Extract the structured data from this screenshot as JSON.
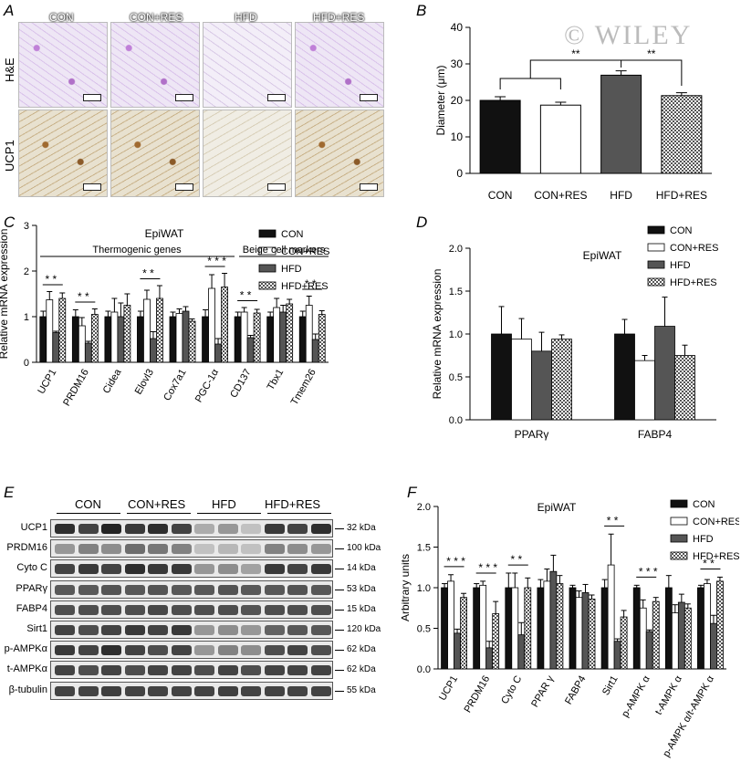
{
  "panels": {
    "A": {
      "label": "A",
      "columns": [
        "CON",
        "CON+RES",
        "HFD",
        "HFD+RES"
      ],
      "rows": [
        "H&E",
        "UCP1"
      ]
    },
    "B": {
      "label": "B"
    },
    "C": {
      "label": "C"
    },
    "D": {
      "label": "D"
    },
    "E": {
      "label": "E",
      "groups": [
        "CON",
        "CON+RES",
        "HFD",
        "HFD+RES"
      ],
      "proteins": [
        {
          "name": "UCP1",
          "kda": "32 kDa"
        },
        {
          "name": "PRDM16",
          "kda": "100 kDa"
        },
        {
          "name": "Cyto C",
          "kda": "14 kDa"
        },
        {
          "name": "PPARγ",
          "kda": "53 kDa"
        },
        {
          "name": "FABP4",
          "kda": "15 kDa"
        },
        {
          "name": "Sirt1",
          "kda": "120 kDa"
        },
        {
          "name": "p-AMPKα",
          "kda": "62 kDa"
        },
        {
          "name": "t-AMPKα",
          "kda": "62 kDa"
        },
        {
          "name": "β-tubulin",
          "kda": "55 kDa"
        }
      ]
    },
    "F": {
      "label": "F"
    }
  },
  "watermark": "© WILEY",
  "colors": {
    "CON": "#111111",
    "CON+RES": "#ffffff",
    "HFD": "#555555",
    "HFD+RES": "#bbbbbb"
  },
  "chart_data": [
    {
      "id": "B",
      "type": "bar",
      "ylabel": "Diameter (μm)",
      "ylim": [
        0,
        40
      ],
      "yticks": [
        0,
        10,
        20,
        30,
        40
      ],
      "categories": [
        "CON",
        "CON+RES",
        "HFD",
        "HFD+RES"
      ],
      "values": [
        20.0,
        18.7,
        26.9,
        21.3
      ],
      "errors": [
        1.0,
        0.8,
        1.2,
        0.8
      ],
      "significance": [
        "**",
        "**"
      ]
    },
    {
      "id": "C",
      "type": "bar",
      "title": "EpiWAT",
      "ylabel": "Relative mRNA expression",
      "ylim": [
        0,
        3
      ],
      "yticks": [
        0,
        1,
        2,
        3
      ],
      "group_labels": [
        "Thermogenic genes",
        "Beige cell markers"
      ],
      "categories": [
        "UCP1",
        "PRDM16",
        "Cidea",
        "Elovl3",
        "Cox7a1",
        "PGC-1α",
        "CD137",
        "Tbx1",
        "Tmem26"
      ],
      "series": [
        {
          "name": "CON",
          "values": [
            1.0,
            1.0,
            1.0,
            1.0,
            1.0,
            1.0,
            1.0,
            1.0,
            1.0
          ],
          "errors": [
            0.12,
            0.15,
            0.12,
            0.12,
            0.1,
            0.15,
            0.1,
            0.1,
            0.12
          ]
        },
        {
          "name": "CON+RES",
          "values": [
            1.37,
            0.8,
            1.1,
            1.38,
            1.07,
            1.62,
            1.1,
            1.2,
            1.25
          ],
          "errors": [
            0.18,
            0.18,
            0.3,
            0.2,
            0.1,
            0.3,
            0.1,
            0.2,
            0.2
          ]
        },
        {
          "name": "HFD",
          "values": [
            0.65,
            0.42,
            1.0,
            0.52,
            1.12,
            0.4,
            0.54,
            1.1,
            0.5
          ],
          "errors": [
            0.03,
            0.04,
            0.3,
            0.15,
            0.1,
            0.12,
            0.05,
            0.15,
            0.12
          ]
        },
        {
          "name": "HFD+RES",
          "values": [
            1.4,
            1.05,
            1.25,
            1.4,
            0.9,
            1.65,
            1.08,
            1.28,
            1.05
          ],
          "errors": [
            0.12,
            0.12,
            0.25,
            0.28,
            0.05,
            0.3,
            0.08,
            0.1,
            0.08
          ]
        }
      ],
      "significance_labels": [
        "*",
        "*",
        "*",
        "*",
        "*",
        "*",
        "*",
        "*",
        "*",
        "*",
        "*",
        "*",
        "*",
        "*",
        "*"
      ]
    },
    {
      "id": "D",
      "type": "bar",
      "title": "EpiWAT",
      "ylabel": "Relative mRNA expression",
      "ylim": [
        0,
        2.0
      ],
      "yticks": [
        "0.0",
        "0.5",
        "1.0",
        "1.5",
        "2.0"
      ],
      "categories": [
        "PPARγ",
        "FABP4"
      ],
      "series": [
        {
          "name": "CON",
          "values": [
            1.0,
            1.0
          ],
          "errors": [
            0.32,
            0.17
          ]
        },
        {
          "name": "CON+RES",
          "values": [
            0.94,
            0.69
          ],
          "errors": [
            0.24,
            0.06
          ]
        },
        {
          "name": "HFD",
          "values": [
            0.8,
            1.09
          ],
          "errors": [
            0.22,
            0.34
          ]
        },
        {
          "name": "HFD+RES",
          "values": [
            0.94,
            0.75
          ],
          "errors": [
            0.05,
            0.12
          ]
        }
      ]
    },
    {
      "id": "F",
      "type": "bar",
      "title": "EpiWAT",
      "ylabel": "Arbitrary units",
      "ylim": [
        0,
        2.0
      ],
      "yticks": [
        "0.0",
        "0.5",
        "1.0",
        "1.5",
        "2.0"
      ],
      "categories": [
        "UCP1",
        "PRDM16",
        "Cyto C",
        "PPAR γ",
        "FABP4",
        "Sirt1",
        "p-AMPK α",
        "t-AMPK α",
        "p-AMPK α/t-AMPK α"
      ],
      "series": [
        {
          "name": "CON",
          "values": [
            1.0,
            1.0,
            1.0,
            1.0,
            1.0,
            1.0,
            1.0,
            1.0,
            1.0
          ],
          "errors": [
            0.05,
            0.05,
            0.18,
            0.1,
            0.03,
            0.1,
            0.03,
            0.15,
            0.03
          ]
        },
        {
          "name": "CON+RES",
          "values": [
            1.08,
            1.03,
            1.0,
            1.08,
            0.88,
            1.28,
            0.75,
            0.69,
            1.05
          ],
          "errors": [
            0.08,
            0.05,
            0.18,
            0.15,
            0.08,
            0.38,
            0.1,
            0.1,
            0.05
          ]
        },
        {
          "name": "HFD",
          "values": [
            0.44,
            0.26,
            0.42,
            1.2,
            0.94,
            0.34,
            0.46,
            0.82,
            0.56
          ],
          "errors": [
            0.05,
            0.08,
            0.15,
            0.2,
            0.1,
            0.03,
            0.02,
            0.1,
            0.1
          ]
        },
        {
          "name": "HFD+RES",
          "values": [
            0.88,
            0.68,
            1.0,
            1.05,
            0.86,
            0.64,
            0.83,
            0.75,
            1.08
          ],
          "errors": [
            0.05,
            0.15,
            0.12,
            0.1,
            0.05,
            0.08,
            0.05,
            0.05,
            0.05
          ]
        }
      ],
      "significance_labels": [
        "*",
        "*",
        "*",
        "*",
        "*",
        "*",
        "*",
        "*",
        "*",
        "*",
        "*",
        "*",
        "*",
        "*",
        "*",
        "*",
        "*"
      ]
    }
  ]
}
